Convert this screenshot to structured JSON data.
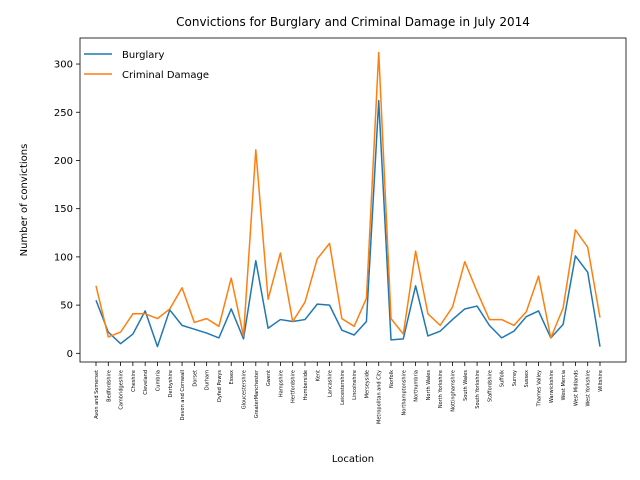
{
  "chart_data": {
    "type": "line",
    "title": "Convictions for Burglary and Criminal Damage in July 2014",
    "xlabel": "Location",
    "ylabel": "Number of convictions",
    "ylim": [
      -9,
      327
    ],
    "yticks": [
      0,
      50,
      100,
      150,
      200,
      250,
      300
    ],
    "grid": false,
    "legend_position": "top-left",
    "categories": [
      "Avon and Somerset",
      "Bedfordshire",
      "Cambridgeshire",
      "Cheshire",
      "Cleveland",
      "Cumbria",
      "Derbyshire",
      "Devon and Cornwall",
      "Dorset",
      "Durham",
      "Dyfed Powys",
      "Essex",
      "Gloucestershire",
      "GreaterManchester",
      "Gwent",
      "Hampshire",
      "Hertfordshire",
      "Humberside",
      "Kent",
      "Lancashire",
      "Leicestershire",
      "Lincolnshire",
      "Merseyside",
      "Metropolitan and City",
      "Norfolk",
      "Northamptonshire",
      "Northumbria",
      "North Wales",
      "North Yorkshire",
      "Nottinghamshire",
      "South Wales",
      "South Yorkshire",
      "Staffordshire",
      "Suffolk",
      "Surrey",
      "Sussex",
      "Thames Valley",
      "Warwickshire",
      "West Mercia",
      "West Midlands",
      "West Yorkshire",
      "Wiltshire"
    ],
    "series": [
      {
        "name": "Burglary",
        "color": "#1f77b4",
        "values": [
          55,
          22,
          10,
          20,
          44,
          7,
          45,
          29,
          25,
          21,
          16,
          46,
          15,
          96,
          26,
          35,
          33,
          35,
          51,
          50,
          24,
          19,
          33,
          262,
          14,
          15,
          70,
          18,
          23,
          35,
          46,
          49,
          29,
          16,
          23,
          38,
          44,
          16,
          30,
          101,
          84,
          7
        ]
      },
      {
        "name": "Criminal Damage",
        "color": "#ff7f0e",
        "values": [
          70,
          17,
          22,
          41,
          41,
          36,
          46,
          68,
          32,
          36,
          28,
          78,
          18,
          211,
          56,
          104,
          33,
          53,
          98,
          114,
          36,
          28,
          57,
          312,
          36,
          20,
          106,
          41,
          29,
          48,
          95,
          64,
          35,
          35,
          29,
          43,
          80,
          16,
          47,
          128,
          110,
          37
        ]
      }
    ]
  }
}
